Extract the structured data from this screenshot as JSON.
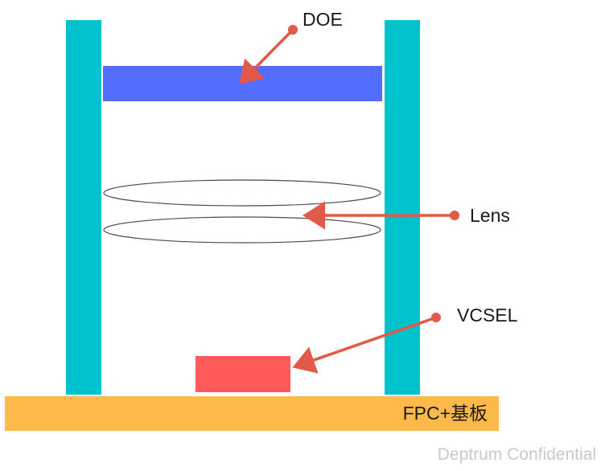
{
  "labels": {
    "doe": "DOE",
    "lens": "Lens",
    "vcsel": "VCSEL",
    "fpc": "FPC+基板"
  },
  "watermark": "Deptrum Confidential",
  "colors": {
    "wall": "#00C2CC",
    "doe": "#536DFE",
    "vcsel": "#FF5A5A",
    "fpc": "#FDB94A",
    "arrow": "#E05A47",
    "lens_outline": "#4a4a4a"
  }
}
